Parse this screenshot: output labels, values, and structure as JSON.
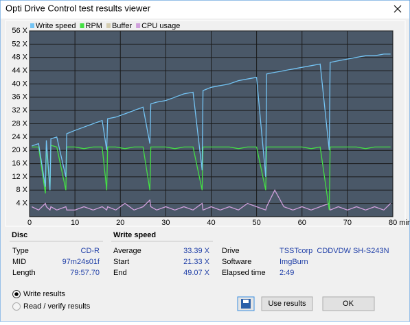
{
  "window": {
    "title": "Opti Drive Control test results viewer"
  },
  "chart_data": {
    "type": "line",
    "x": [
      0.5,
      2,
      3.5,
      3.7,
      4.5,
      4.7,
      6,
      8,
      8.2,
      10,
      12,
      14,
      16,
      17,
      17.2,
      19,
      21,
      23,
      25,
      26.5,
      26.7,
      28,
      30,
      32,
      34,
      36,
      38,
      38.2,
      40,
      42,
      44,
      46,
      48,
      50,
      52,
      52.2,
      54,
      56,
      58,
      60,
      62,
      64,
      66,
      66.2,
      68,
      70,
      72,
      74,
      76,
      78,
      79.5
    ],
    "series": [
      {
        "name": "Write speed",
        "color": "#74c4f4",
        "values": [
          21.3,
          22,
          9,
          23,
          8,
          23.5,
          24,
          12,
          25,
          26,
          27,
          28,
          29,
          20,
          29.5,
          30,
          31,
          32,
          33,
          22,
          34,
          34.5,
          35,
          36,
          37,
          37.5,
          14,
          38,
          39,
          39.5,
          40,
          41,
          41.5,
          42,
          12,
          43,
          43.5,
          44,
          44.5,
          45,
          45.5,
          46,
          20,
          46.5,
          47,
          47.5,
          48,
          48.5,
          48.5,
          49,
          49
        ]
      },
      {
        "name": "RPM",
        "color": "#44e044",
        "values": [
          21,
          21,
          7,
          21,
          8,
          21.5,
          21,
          8,
          21,
          21,
          20.5,
          21,
          21,
          8,
          21,
          21,
          20.5,
          21,
          21,
          8,
          21,
          21,
          21,
          20.5,
          21,
          21,
          8,
          21,
          21,
          21,
          21,
          20.5,
          21,
          21,
          8,
          21,
          21,
          21,
          21,
          21,
          20.5,
          21,
          2,
          21,
          21,
          21,
          21,
          20.5,
          21,
          21,
          21
        ]
      },
      {
        "name": "Buffer",
        "color": "#d4ccb0",
        "values": [
          null,
          null,
          null,
          null,
          null,
          null,
          null,
          null,
          null,
          null,
          null,
          null,
          null,
          null,
          null,
          null,
          null,
          null,
          null,
          null,
          null,
          null,
          null,
          null,
          null,
          null,
          null,
          null,
          null,
          null,
          null,
          null,
          null,
          null,
          null,
          null,
          null,
          null,
          null,
          null,
          null,
          null,
          null,
          null,
          null,
          null,
          null,
          null,
          null,
          null,
          null
        ]
      },
      {
        "name": "CPU usage",
        "color": "#d0a0dc",
        "values": [
          3,
          2,
          4,
          3,
          2,
          3,
          2,
          3,
          2,
          2,
          3,
          2,
          3,
          2,
          3,
          2,
          4,
          2,
          3,
          5,
          3,
          2,
          3,
          2,
          3,
          2,
          4,
          2,
          3,
          2,
          3,
          2,
          4,
          3,
          2,
          3,
          8,
          3,
          2,
          3,
          2,
          3,
          4,
          2,
          3,
          2,
          3,
          2,
          3,
          2,
          4
        ]
      }
    ],
    "xlim": [
      0,
      80
    ],
    "xticks": [
      0,
      10,
      20,
      30,
      40,
      50,
      60,
      70,
      {
        "value": 80,
        "label": "80 min"
      }
    ],
    "ylim": [
      0,
      56
    ],
    "yticks": [
      {
        "value": 4,
        "label": "4 X"
      },
      {
        "value": 8,
        "label": "8 X"
      },
      {
        "value": 12,
        "label": "12 X"
      },
      {
        "value": 16,
        "label": "16 X"
      },
      {
        "value": 20,
        "label": "20 X"
      },
      {
        "value": 24,
        "label": "24 X"
      },
      {
        "value": 28,
        "label": "28 X"
      },
      {
        "value": 32,
        "label": "32 X"
      },
      {
        "value": 36,
        "label": "36 X"
      },
      {
        "value": 40,
        "label": "40 X"
      },
      {
        "value": 44,
        "label": "44 X"
      },
      {
        "value": 48,
        "label": "48 X"
      },
      {
        "value": 52,
        "label": "52 X"
      },
      {
        "value": 56,
        "label": "56 X"
      }
    ],
    "grid": true
  },
  "disc": {
    "title": "Disc",
    "rows": [
      [
        "Type",
        "CD-R"
      ],
      [
        "MID",
        "97m24s01f"
      ],
      [
        "Length",
        "79:57.70"
      ]
    ]
  },
  "write_speed": {
    "title": "Write speed",
    "rows": [
      [
        "Average",
        "33.39 X"
      ],
      [
        "Start",
        "21.33 X"
      ],
      [
        "End",
        "49.07 X"
      ]
    ]
  },
  "drive": {
    "rows": [
      [
        "Drive",
        "TSSTcorp  CDDVDW SH-S243N"
      ],
      [
        "Software",
        "ImgBurn"
      ],
      [
        "Elapsed time",
        "2:49"
      ]
    ]
  },
  "radios": [
    "Write results",
    "Read / verify results"
  ],
  "buttons": [
    "Use results",
    "OK"
  ]
}
